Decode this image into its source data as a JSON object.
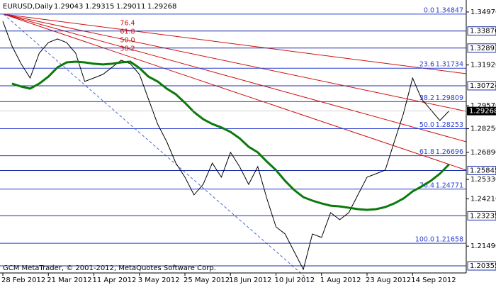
{
  "chart_data": {
    "type": "line",
    "symbol": "EURUSD,Daily",
    "ohlc": [
      1.29043,
      1.29315,
      1.29011,
      1.29268
    ],
    "footer": "GCM MetaTrader, © 2001-2012, MetaQuotes Software Corp.",
    "categories": [
      "28 Feb 2012",
      null,
      null,
      null,
      null,
      "21 Mar 2012",
      null,
      null,
      null,
      null,
      "11 Apr 2012",
      null,
      null,
      null,
      null,
      "3 May 2012",
      null,
      null,
      null,
      null,
      "25 May 2012",
      null,
      null,
      null,
      null,
      "18 Jun 2012",
      null,
      null,
      null,
      null,
      "10 Jul 2012",
      null,
      null,
      null,
      null,
      "1 Aug 2012",
      null,
      null,
      null,
      null,
      "23 Aug 2012",
      null,
      null,
      null,
      null,
      "14 Sep 2012",
      null,
      null,
      null,
      null
    ],
    "series": [
      {
        "name": "Price",
        "color": "#000000",
        "values": [
          1.3444,
          1.3301,
          1.3199,
          1.3117,
          1.326,
          1.3321,
          1.3342,
          1.3321,
          1.326,
          1.3097,
          1.3117,
          1.3138,
          1.3179,
          1.3219,
          1.3199,
          1.3138,
          1.2995,
          1.2852,
          1.275,
          1.2627,
          1.2546,
          1.2444,
          1.2505,
          1.2627,
          1.2546,
          1.2689,
          1.2607,
          1.2505,
          1.2607,
          1.2423,
          1.226,
          1.2219,
          1.2117,
          1.2015,
          1.2219,
          1.2199,
          1.2342,
          1.2301,
          1.2342,
          1.2444,
          1.2546,
          1.2566,
          1.2587,
          1.275,
          1.2913,
          1.3117,
          1.2995,
          1.2934,
          1.2872,
          1.2927
        ]
      },
      {
        "name": "Moving Average",
        "color": "#0a7a0a",
        "values": [
          null,
          1.3085,
          1.3068,
          1.3056,
          1.3085,
          1.3125,
          1.3178,
          1.3207,
          1.3211,
          1.3207,
          1.3199,
          1.3195,
          1.3199,
          1.3207,
          1.3211,
          1.3174,
          1.3125,
          1.3097,
          1.3056,
          1.3023,
          1.2974,
          1.2921,
          1.288,
          1.2852,
          1.2832,
          1.2807,
          1.277,
          1.2721,
          1.2689,
          1.2636,
          1.2587,
          1.2525,
          1.2472,
          1.2431,
          1.2411,
          1.2395,
          1.2382,
          1.2378,
          1.237,
          1.2362,
          1.2358,
          1.2362,
          1.2374,
          1.2395,
          1.2423,
          1.2464,
          1.2493,
          1.2525,
          1.2566,
          1.2619
        ]
      }
    ],
    "ylim": [
      1.1962,
      1.3566
    ],
    "yticks": [
      {
        "value": 1.3497,
        "label": "1.34970"
      },
      {
        "value": 1.3192,
        "label": "1.31920"
      },
      {
        "value": 1.2957,
        "label": "1.29570"
      },
      {
        "value": 1.2825,
        "label": "1.28250"
      },
      {
        "value": 1.2689,
        "label": "1.26890"
      },
      {
        "value": 1.2533,
        "label": "1.25330"
      },
      {
        "value": 1.2421,
        "label": "1.24210"
      },
      {
        "value": 1.2149,
        "label": "1.21490"
      }
    ],
    "levels": [
      1.33876,
      1.32893,
      1.30724,
      1.25845,
      1.23235,
      1.20355
    ],
    "level_color": "#1d2fa8",
    "fib_color": "#2a3fd0",
    "fan_color": "#d01010",
    "fib_levels": [
      {
        "ratio": "0.0",
        "price": 1.34847
      },
      {
        "ratio": "23.6",
        "price": 1.31734
      },
      {
        "ratio": "38.2",
        "price": 1.29809
      },
      {
        "ratio": "50.0",
        "price": 1.28253
      },
      {
        "ratio": "61.8",
        "price": 1.26696
      },
      {
        "ratio": "76.4",
        "price": 1.24771
      },
      {
        "ratio": "100.0",
        "price": 1.21658
      }
    ],
    "fan_labels": [
      "76.4",
      "61.8",
      "50.0",
      "38.2"
    ]
  }
}
